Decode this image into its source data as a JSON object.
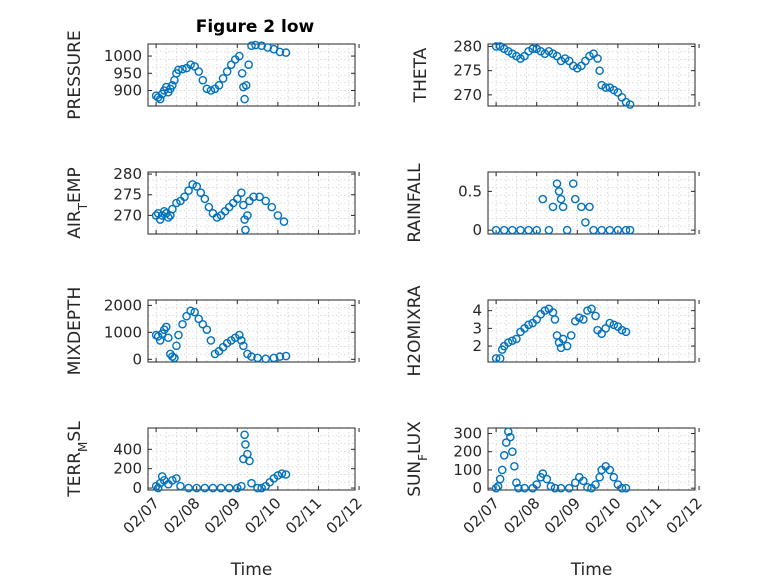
{
  "figure": {
    "title": "Figure 2 low"
  },
  "chart_data": [
    {
      "type": "scatter",
      "panel": "top-left",
      "ylabel": "PRESSURE",
      "xlabel": "",
      "ylim": [
        855,
        1035
      ],
      "yticks": [
        900,
        950,
        1000
      ],
      "xlim": [
        "2022-02-06.9",
        "2022-02-11.3"
      ],
      "grid": true,
      "points": [
        [
          7.0,
          885
        ],
        [
          7.05,
          880
        ],
        [
          7.1,
          875
        ],
        [
          7.15,
          890
        ],
        [
          7.2,
          900
        ],
        [
          7.25,
          910
        ],
        [
          7.3,
          895
        ],
        [
          7.35,
          905
        ],
        [
          7.4,
          915
        ],
        [
          7.45,
          930
        ],
        [
          7.5,
          950
        ],
        [
          7.55,
          960
        ],
        [
          7.65,
          962
        ],
        [
          7.75,
          965
        ],
        [
          7.85,
          975
        ],
        [
          7.95,
          970
        ],
        [
          8.05,
          955
        ],
        [
          8.15,
          930
        ],
        [
          8.25,
          905
        ],
        [
          8.35,
          900
        ],
        [
          8.45,
          905
        ],
        [
          8.55,
          915
        ],
        [
          8.65,
          935
        ],
        [
          8.75,
          955
        ],
        [
          8.85,
          975
        ],
        [
          8.95,
          990
        ],
        [
          9.05,
          1000
        ],
        [
          9.12,
          950
        ],
        [
          9.15,
          910
        ],
        [
          9.18,
          875
        ],
        [
          9.22,
          915
        ],
        [
          9.28,
          975
        ],
        [
          9.35,
          1030
        ],
        [
          9.45,
          1032
        ],
        [
          9.6,
          1030
        ],
        [
          9.75,
          1025
        ],
        [
          9.9,
          1020
        ],
        [
          10.05,
          1012
        ],
        [
          10.2,
          1010
        ]
      ]
    },
    {
      "type": "scatter",
      "panel": "top-right",
      "ylabel": "THETA",
      "xlabel": "",
      "ylim": [
        267.7,
        280.5
      ],
      "yticks": [
        270,
        275,
        280
      ],
      "grid": true,
      "points": [
        [
          7.0,
          280
        ],
        [
          7.1,
          280
        ],
        [
          7.2,
          279.5
        ],
        [
          7.3,
          279
        ],
        [
          7.4,
          278.5
        ],
        [
          7.5,
          278
        ],
        [
          7.6,
          277.5
        ],
        [
          7.7,
          278
        ],
        [
          7.8,
          279
        ],
        [
          7.9,
          279.5
        ],
        [
          8.0,
          279.5
        ],
        [
          8.1,
          279
        ],
        [
          8.2,
          278.5
        ],
        [
          8.3,
          279
        ],
        [
          8.4,
          278.5
        ],
        [
          8.5,
          278
        ],
        [
          8.6,
          277
        ],
        [
          8.7,
          277.5
        ],
        [
          8.8,
          277
        ],
        [
          8.9,
          276
        ],
        [
          9.0,
          275.5
        ],
        [
          9.1,
          276
        ],
        [
          9.2,
          277
        ],
        [
          9.3,
          278
        ],
        [
          9.4,
          278.5
        ],
        [
          9.5,
          277.5
        ],
        [
          9.55,
          275
        ],
        [
          9.6,
          272
        ],
        [
          9.7,
          271.5
        ],
        [
          9.8,
          271.5
        ],
        [
          9.9,
          271
        ],
        [
          10.0,
          270.5
        ],
        [
          10.1,
          269.5
        ],
        [
          10.2,
          268.5
        ],
        [
          10.3,
          268
        ]
      ]
    },
    {
      "type": "scatter",
      "panel": "row2-left",
      "ylabel": "AIR_TEMP",
      "xlabel": "",
      "ylim": [
        265.5,
        280.5
      ],
      "yticks": [
        270,
        275,
        280
      ],
      "grid": true,
      "points": [
        [
          7.0,
          270
        ],
        [
          7.05,
          270.5
        ],
        [
          7.1,
          269
        ],
        [
          7.15,
          270
        ],
        [
          7.2,
          271
        ],
        [
          7.25,
          270.5
        ],
        [
          7.3,
          269.5
        ],
        [
          7.35,
          270
        ],
        [
          7.4,
          271.5
        ],
        [
          7.5,
          273
        ],
        [
          7.6,
          273.5
        ],
        [
          7.7,
          274.5
        ],
        [
          7.8,
          276
        ],
        [
          7.9,
          277.5
        ],
        [
          8.0,
          277
        ],
        [
          8.1,
          275.5
        ],
        [
          8.2,
          274
        ],
        [
          8.3,
          272
        ],
        [
          8.4,
          270.5
        ],
        [
          8.5,
          269.5
        ],
        [
          8.6,
          270
        ],
        [
          8.7,
          271
        ],
        [
          8.8,
          272
        ],
        [
          8.9,
          273
        ],
        [
          9.0,
          274
        ],
        [
          9.1,
          275.5
        ],
        [
          9.15,
          272.5
        ],
        [
          9.18,
          269
        ],
        [
          9.2,
          266.5
        ],
        [
          9.25,
          270
        ],
        [
          9.3,
          273.5
        ],
        [
          9.4,
          274.5
        ],
        [
          9.55,
          274.5
        ],
        [
          9.7,
          273.5
        ],
        [
          9.85,
          272
        ],
        [
          10.0,
          270
        ],
        [
          10.15,
          268.5
        ]
      ]
    },
    {
      "type": "scatter",
      "panel": "row2-right",
      "ylabel": "RAINFALL",
      "xlabel": "",
      "ylim": [
        -0.05,
        0.75
      ],
      "yticks": [
        0,
        0.5
      ],
      "grid": true,
      "points": [
        [
          7.0,
          0
        ],
        [
          7.2,
          0
        ],
        [
          7.4,
          0
        ],
        [
          7.6,
          0
        ],
        [
          7.8,
          0
        ],
        [
          8.0,
          0
        ],
        [
          8.15,
          0.4
        ],
        [
          8.3,
          0
        ],
        [
          8.4,
          0.3
        ],
        [
          8.5,
          0.6
        ],
        [
          8.55,
          0.5
        ],
        [
          8.6,
          0.4
        ],
        [
          8.65,
          0.3
        ],
        [
          8.75,
          0
        ],
        [
          8.9,
          0.6
        ],
        [
          8.95,
          0.4
        ],
        [
          9.1,
          0.3
        ],
        [
          9.2,
          0.1
        ],
        [
          9.3,
          0.3
        ],
        [
          9.4,
          0
        ],
        [
          9.6,
          0
        ],
        [
          9.8,
          0
        ],
        [
          10.0,
          0
        ],
        [
          10.2,
          0
        ],
        [
          10.3,
          0
        ]
      ]
    },
    {
      "type": "scatter",
      "panel": "row3-left",
      "ylabel": "MIXDEPTH",
      "xlabel": "",
      "ylim": [
        -100,
        2200
      ],
      "yticks": [
        0,
        1000,
        2000
      ],
      "grid": true,
      "points": [
        [
          7.0,
          900
        ],
        [
          7.05,
          850
        ],
        [
          7.1,
          700
        ],
        [
          7.15,
          950
        ],
        [
          7.2,
          1100
        ],
        [
          7.25,
          1200
        ],
        [
          7.3,
          800
        ],
        [
          7.35,
          200
        ],
        [
          7.4,
          100
        ],
        [
          7.45,
          50
        ],
        [
          7.5,
          500
        ],
        [
          7.55,
          900
        ],
        [
          7.65,
          1300
        ],
        [
          7.75,
          1600
        ],
        [
          7.85,
          1800
        ],
        [
          7.95,
          1750
        ],
        [
          8.05,
          1500
        ],
        [
          8.15,
          1300
        ],
        [
          8.25,
          1100
        ],
        [
          8.35,
          700
        ],
        [
          8.45,
          200
        ],
        [
          8.55,
          300
        ],
        [
          8.65,
          450
        ],
        [
          8.75,
          600
        ],
        [
          8.85,
          700
        ],
        [
          8.95,
          800
        ],
        [
          9.05,
          900
        ],
        [
          9.1,
          700
        ],
        [
          9.15,
          500
        ],
        [
          9.25,
          200
        ],
        [
          9.35,
          100
        ],
        [
          9.5,
          50
        ],
        [
          9.7,
          20
        ],
        [
          9.9,
          50
        ],
        [
          10.05,
          100
        ],
        [
          10.2,
          120
        ]
      ]
    },
    {
      "type": "scatter",
      "panel": "row3-right",
      "ylabel": "H2OMIXRA",
      "xlabel": "",
      "ylim": [
        1.1,
        4.6
      ],
      "yticks": [
        2,
        3,
        4
      ],
      "grid": true,
      "points": [
        [
          7.0,
          1.3
        ],
        [
          7.1,
          1.3
        ],
        [
          7.15,
          1.8
        ],
        [
          7.2,
          2.0
        ],
        [
          7.3,
          2.2
        ],
        [
          7.4,
          2.3
        ],
        [
          7.5,
          2.4
        ],
        [
          7.6,
          2.8
        ],
        [
          7.7,
          3.0
        ],
        [
          7.8,
          3.2
        ],
        [
          7.9,
          3.3
        ],
        [
          8.0,
          3.5
        ],
        [
          8.1,
          3.8
        ],
        [
          8.2,
          4.0
        ],
        [
          8.3,
          4.1
        ],
        [
          8.4,
          3.9
        ],
        [
          8.45,
          3.5
        ],
        [
          8.5,
          2.6
        ],
        [
          8.55,
          2.2
        ],
        [
          8.6,
          1.9
        ],
        [
          8.65,
          2.4
        ],
        [
          8.75,
          2.0
        ],
        [
          8.85,
          2.6
        ],
        [
          8.95,
          3.4
        ],
        [
          9.05,
          3.6
        ],
        [
          9.15,
          3.5
        ],
        [
          9.25,
          4.0
        ],
        [
          9.35,
          4.1
        ],
        [
          9.45,
          3.7
        ],
        [
          9.5,
          2.9
        ],
        [
          9.6,
          2.7
        ],
        [
          9.7,
          3.0
        ],
        [
          9.8,
          3.3
        ],
        [
          9.9,
          3.2
        ],
        [
          10.0,
          3.1
        ],
        [
          10.1,
          2.9
        ],
        [
          10.2,
          2.8
        ]
      ]
    },
    {
      "type": "scatter",
      "panel": "row4-left",
      "ylabel": "TERR_MSL",
      "xlabel": "Time",
      "ylim": [
        -20,
        620
      ],
      "yticks": [
        0,
        200,
        400
      ],
      "grid": true,
      "points": [
        [
          7.0,
          20
        ],
        [
          7.05,
          0
        ],
        [
          7.1,
          50
        ],
        [
          7.15,
          120
        ],
        [
          7.2,
          80
        ],
        [
          7.3,
          40
        ],
        [
          7.4,
          80
        ],
        [
          7.5,
          100
        ],
        [
          7.6,
          20
        ],
        [
          7.8,
          0
        ],
        [
          8.0,
          0
        ],
        [
          8.2,
          0
        ],
        [
          8.4,
          0
        ],
        [
          8.6,
          0
        ],
        [
          8.8,
          0
        ],
        [
          9.0,
          0
        ],
        [
          9.1,
          20
        ],
        [
          9.15,
          300
        ],
        [
          9.18,
          550
        ],
        [
          9.2,
          450
        ],
        [
          9.25,
          350
        ],
        [
          9.3,
          280
        ],
        [
          9.35,
          50
        ],
        [
          9.5,
          0
        ],
        [
          9.6,
          0
        ],
        [
          9.7,
          20
        ],
        [
          9.8,
          60
        ],
        [
          9.9,
          100
        ],
        [
          10.0,
          130
        ],
        [
          10.1,
          150
        ],
        [
          10.2,
          140
        ]
      ]
    },
    {
      "type": "scatter",
      "panel": "row4-right",
      "ylabel": "SUN_FLUX",
      "xlabel": "Time",
      "ylim": [
        -10,
        330
      ],
      "yticks": [
        0,
        100,
        200,
        300
      ],
      "grid": true,
      "points": [
        [
          7.0,
          0
        ],
        [
          7.05,
          10
        ],
        [
          7.1,
          50
        ],
        [
          7.15,
          100
        ],
        [
          7.2,
          180
        ],
        [
          7.25,
          250
        ],
        [
          7.3,
          310
        ],
        [
          7.35,
          280
        ],
        [
          7.4,
          200
        ],
        [
          7.45,
          120
        ],
        [
          7.5,
          30
        ],
        [
          7.55,
          0
        ],
        [
          7.7,
          0
        ],
        [
          7.9,
          0
        ],
        [
          8.0,
          20
        ],
        [
          8.1,
          60
        ],
        [
          8.15,
          80
        ],
        [
          8.25,
          50
        ],
        [
          8.35,
          10
        ],
        [
          8.45,
          0
        ],
        [
          8.6,
          0
        ],
        [
          8.8,
          0
        ],
        [
          8.95,
          30
        ],
        [
          9.05,
          60
        ],
        [
          9.15,
          40
        ],
        [
          9.25,
          5
        ],
        [
          9.35,
          0
        ],
        [
          9.45,
          20
        ],
        [
          9.55,
          60
        ],
        [
          9.6,
          100
        ],
        [
          9.7,
          120
        ],
        [
          9.8,
          100
        ],
        [
          9.9,
          60
        ],
        [
          10.0,
          20
        ],
        [
          10.1,
          0
        ],
        [
          10.2,
          0
        ]
      ]
    }
  ],
  "xticks": [
    "02/07",
    "02/08",
    "02/09",
    "02/10",
    "02/11",
    "02/12"
  ],
  "xtick_values": [
    7,
    8,
    9,
    10,
    11,
    12
  ],
  "xlim": [
    6.8,
    11.9
  ],
  "colors": {
    "marker": "#0072BD",
    "grid": "#cfcfcf",
    "axis": "#262626"
  }
}
